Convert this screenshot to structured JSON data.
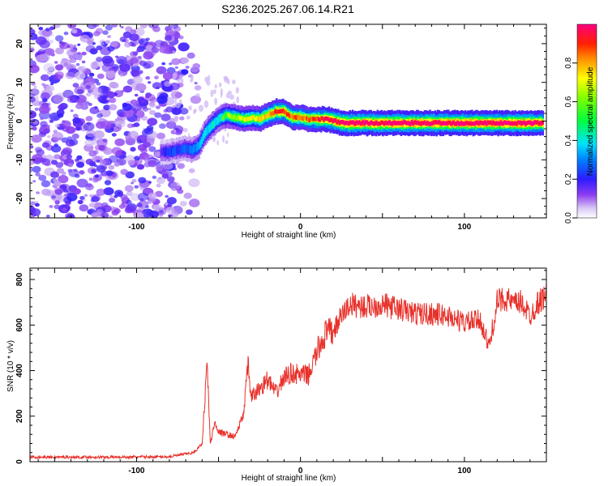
{
  "chart_data": [
    {
      "type": "heatmap",
      "title": "S236.2025.267.06.14.R21",
      "xlabel": "Height of straight line (km)",
      "ylabel": "Frequency (Hz)",
      "xlim": [
        -165,
        150
      ],
      "ylim": [
        -25,
        25
      ],
      "xticks": [
        -100,
        0,
        100
      ],
      "yticks": [
        -20,
        -10,
        0,
        10,
        20
      ],
      "colorbar": {
        "label": "Normalized spectral amplitude",
        "range": [
          0,
          1
        ],
        "ticks": [
          "0.0",
          "0.2",
          "0.4",
          "0.6",
          "0.8"
        ],
        "tick_values": [
          0.0,
          0.2,
          0.4,
          0.6,
          0.8
        ]
      },
      "ridge": {
        "x": [
          -85,
          -80,
          -75,
          -70,
          -66,
          -62,
          -58,
          -54,
          -50,
          -45,
          -40,
          -35,
          -30,
          -25,
          -20,
          -15,
          -10,
          -5,
          0,
          5,
          10,
          15,
          20,
          25,
          30,
          40,
          60,
          80,
          100,
          120,
          140,
          148
        ],
        "y": [
          -8,
          -8,
          -7.5,
          -7,
          -7.5,
          -6.5,
          -3,
          -1,
          0.5,
          1.5,
          1.0,
          0.5,
          0.8,
          0.5,
          1.5,
          2.5,
          2.5,
          1.0,
          1.0,
          0.5,
          0.5,
          0.5,
          0.2,
          -0.5,
          -0.5,
          -0.5,
          -0.5,
          -0.5,
          -0.5,
          -0.5,
          -0.5,
          -0.5
        ],
        "amplitude": [
          0.25,
          0.3,
          0.3,
          0.35,
          0.4,
          0.45,
          0.5,
          0.55,
          0.5,
          0.6,
          0.65,
          0.7,
          0.7,
          0.75,
          0.8,
          0.9,
          0.9,
          0.85,
          0.85,
          0.85,
          0.9,
          0.95,
          0.95,
          1.0,
          1.0,
          1.0,
          1.0,
          1.0,
          1.0,
          1.0,
          1.0,
          0.95
        ]
      },
      "noise_region": {
        "x_range": [
          -165,
          -70
        ],
        "amplitude_range": [
          0.05,
          0.2
        ]
      }
    },
    {
      "type": "line",
      "title": "",
      "xlabel": "Height of straight line (km)",
      "ylabel": "SNR (10 * v/v)",
      "xlim": [
        -165,
        150
      ],
      "ylim": [
        0,
        850
      ],
      "xticks": [
        -100,
        0,
        100
      ],
      "yticks": [
        0,
        200,
        400,
        600,
        800
      ],
      "series": [
        {
          "name": "SNR",
          "color": "#e8302a",
          "x": [
            -165,
            -140,
            -110,
            -80,
            -65,
            -60,
            -57,
            -55,
            -52,
            -50,
            -45,
            -40,
            -35,
            -32,
            -30,
            -25,
            -20,
            -15,
            -10,
            -5,
            0,
            5,
            10,
            15,
            20,
            25,
            30,
            40,
            50,
            60,
            70,
            80,
            90,
            100,
            110,
            115,
            120,
            125,
            130,
            135,
            140,
            145,
            150
          ],
          "values": [
            20,
            20,
            20,
            22,
            40,
            80,
            440,
            80,
            180,
            130,
            120,
            110,
            200,
            420,
            280,
            320,
            360,
            300,
            370,
            390,
            380,
            380,
            480,
            560,
            570,
            640,
            690,
            680,
            690,
            670,
            650,
            650,
            640,
            610,
            620,
            500,
            700,
            720,
            690,
            700,
            640,
            700,
            730
          ]
        }
      ]
    }
  ]
}
